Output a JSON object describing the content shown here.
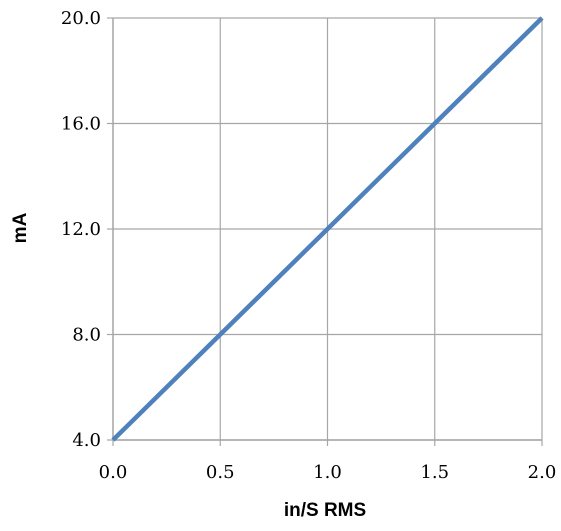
{
  "chart_data": {
    "type": "line",
    "title": "",
    "xlabel": "in/S RMS",
    "ylabel": "mA",
    "xlim": [
      0.0,
      2.0
    ],
    "ylim": [
      4.0,
      20.0
    ],
    "x_ticks": [
      "0.0",
      "0.5",
      "1.0",
      "1.5",
      "2.0"
    ],
    "y_ticks": [
      "4.0",
      "8.0",
      "12.0",
      "16.0",
      "20.0"
    ],
    "grid": true,
    "legend": "none",
    "series": [
      {
        "color": "#4F81BD",
        "x": [
          0.0,
          0.5,
          1.0,
          1.5,
          2.0
        ],
        "y": [
          4.0,
          8.0,
          12.0,
          16.0,
          20.0
        ]
      }
    ],
    "colors": {
      "line": "#4F81BD",
      "grid": "#A6A6A6",
      "axis": "#A6A6A6"
    }
  }
}
